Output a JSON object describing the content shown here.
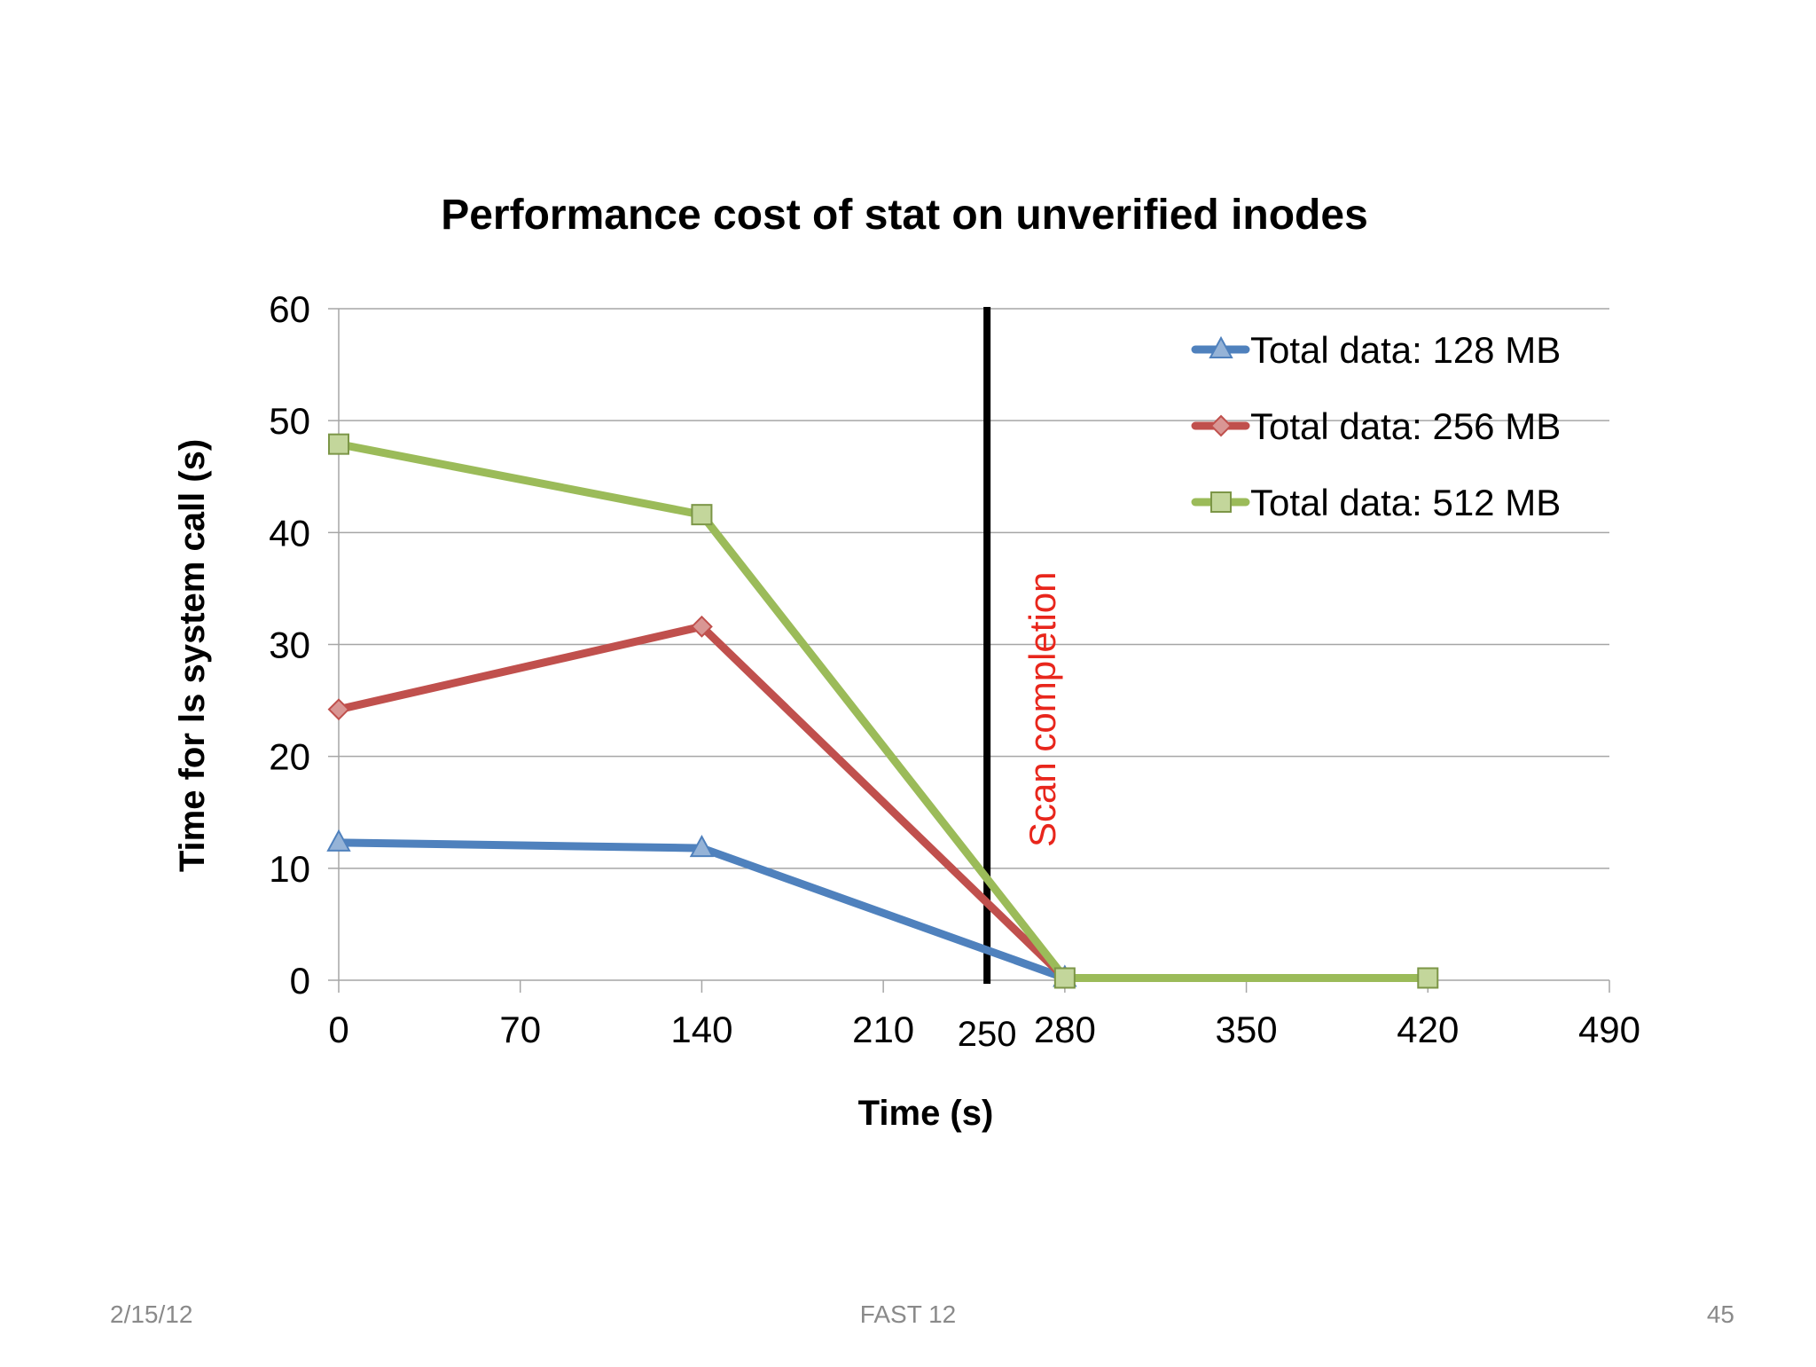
{
  "footer": {
    "date": "2/15/12",
    "event": "FAST 12",
    "page": "45"
  },
  "colors": {
    "series_128": "#4f81bd",
    "series_256": "#c0504d",
    "series_512": "#9bbb59",
    "annotation": "#e8261c",
    "gridline": "#a6a6a6",
    "marker_line": "#000000"
  },
  "chart_data": {
    "type": "line",
    "title": "Performance cost of stat on unverified inodes",
    "xlabel": "Time (s)",
    "ylabel": "Time for ls system call (s)",
    "xlim": [
      0,
      490
    ],
    "ylim": [
      0,
      60
    ],
    "x_ticks": [
      0,
      70,
      140,
      210,
      280,
      350,
      420,
      490
    ],
    "y_ticks": [
      0,
      10,
      20,
      30,
      40,
      50,
      60
    ],
    "grid": "horizontal",
    "legend": "top-right",
    "series": [
      {
        "name": "Total data: 128 MB",
        "marker": "triangle",
        "color": "#4f81bd",
        "x": [
          0,
          140,
          280
        ],
        "y": [
          12.3,
          11.8,
          0.2
        ]
      },
      {
        "name": "Total data: 256 MB",
        "marker": "diamond",
        "color": "#c0504d",
        "x": [
          0,
          140,
          280
        ],
        "y": [
          24.2,
          31.6,
          0.2
        ]
      },
      {
        "name": "Total data: 512 MB",
        "marker": "square",
        "color": "#9bbb59",
        "x": [
          0,
          140,
          280,
          420
        ],
        "y": [
          47.9,
          41.6,
          0.2,
          0.2
        ]
      }
    ],
    "annotations": [
      {
        "type": "vertical-line",
        "x": 250,
        "x_label": "250",
        "text": "Scan completion"
      }
    ]
  }
}
